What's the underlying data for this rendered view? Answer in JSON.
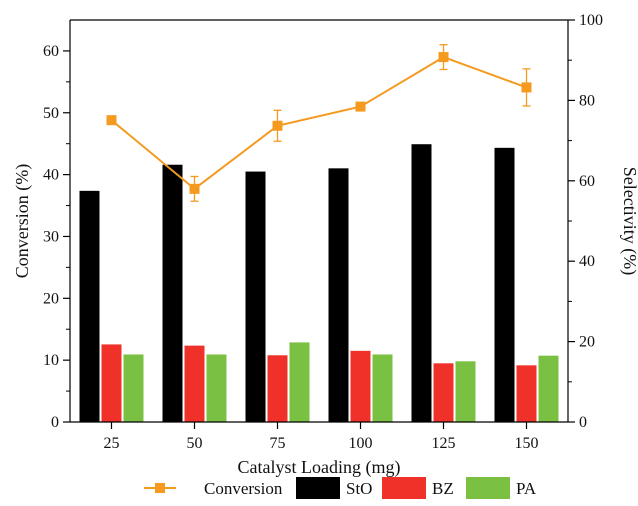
{
  "chart_data": {
    "type": "bar",
    "xlabel": "Catalyst Loading (mg)",
    "ylabel": "Conversion (%)",
    "y2label": "Selectivity (%)",
    "categories": [
      "25",
      "50",
      "75",
      "100",
      "125",
      "150"
    ],
    "ylim": [
      0,
      65
    ],
    "y2lim": [
      0,
      100
    ],
    "yticks": [
      "0",
      "10",
      "20",
      "30",
      "40",
      "50",
      "60"
    ],
    "y2ticks": [
      "0",
      "20",
      "40",
      "60",
      "80",
      "100"
    ],
    "grid": false,
    "legend_position": "bottom",
    "series": [
      {
        "name": "StO",
        "type": "bar",
        "axis": "right",
        "color": "#000000",
        "values": [
          57.5,
          64.0,
          62.3,
          63.1,
          69.1,
          68.2
        ]
      },
      {
        "name": "BZ",
        "type": "bar",
        "axis": "right",
        "color": "#f0312a",
        "values": [
          19.3,
          19.0,
          16.6,
          17.7,
          14.6,
          14.1
        ]
      },
      {
        "name": "PA",
        "type": "bar",
        "axis": "right",
        "color": "#7ac143",
        "values": [
          16.8,
          16.8,
          19.8,
          16.8,
          15.1,
          16.5
        ]
      },
      {
        "name": "Conversion",
        "type": "line",
        "axis": "left",
        "color": "#f39a1f",
        "values": [
          48.8,
          37.7,
          47.9,
          51.0,
          59.0,
          54.1
        ],
        "errors": [
          0.0,
          2.0,
          2.5,
          0.0,
          2.0,
          3.0
        ]
      }
    ]
  }
}
